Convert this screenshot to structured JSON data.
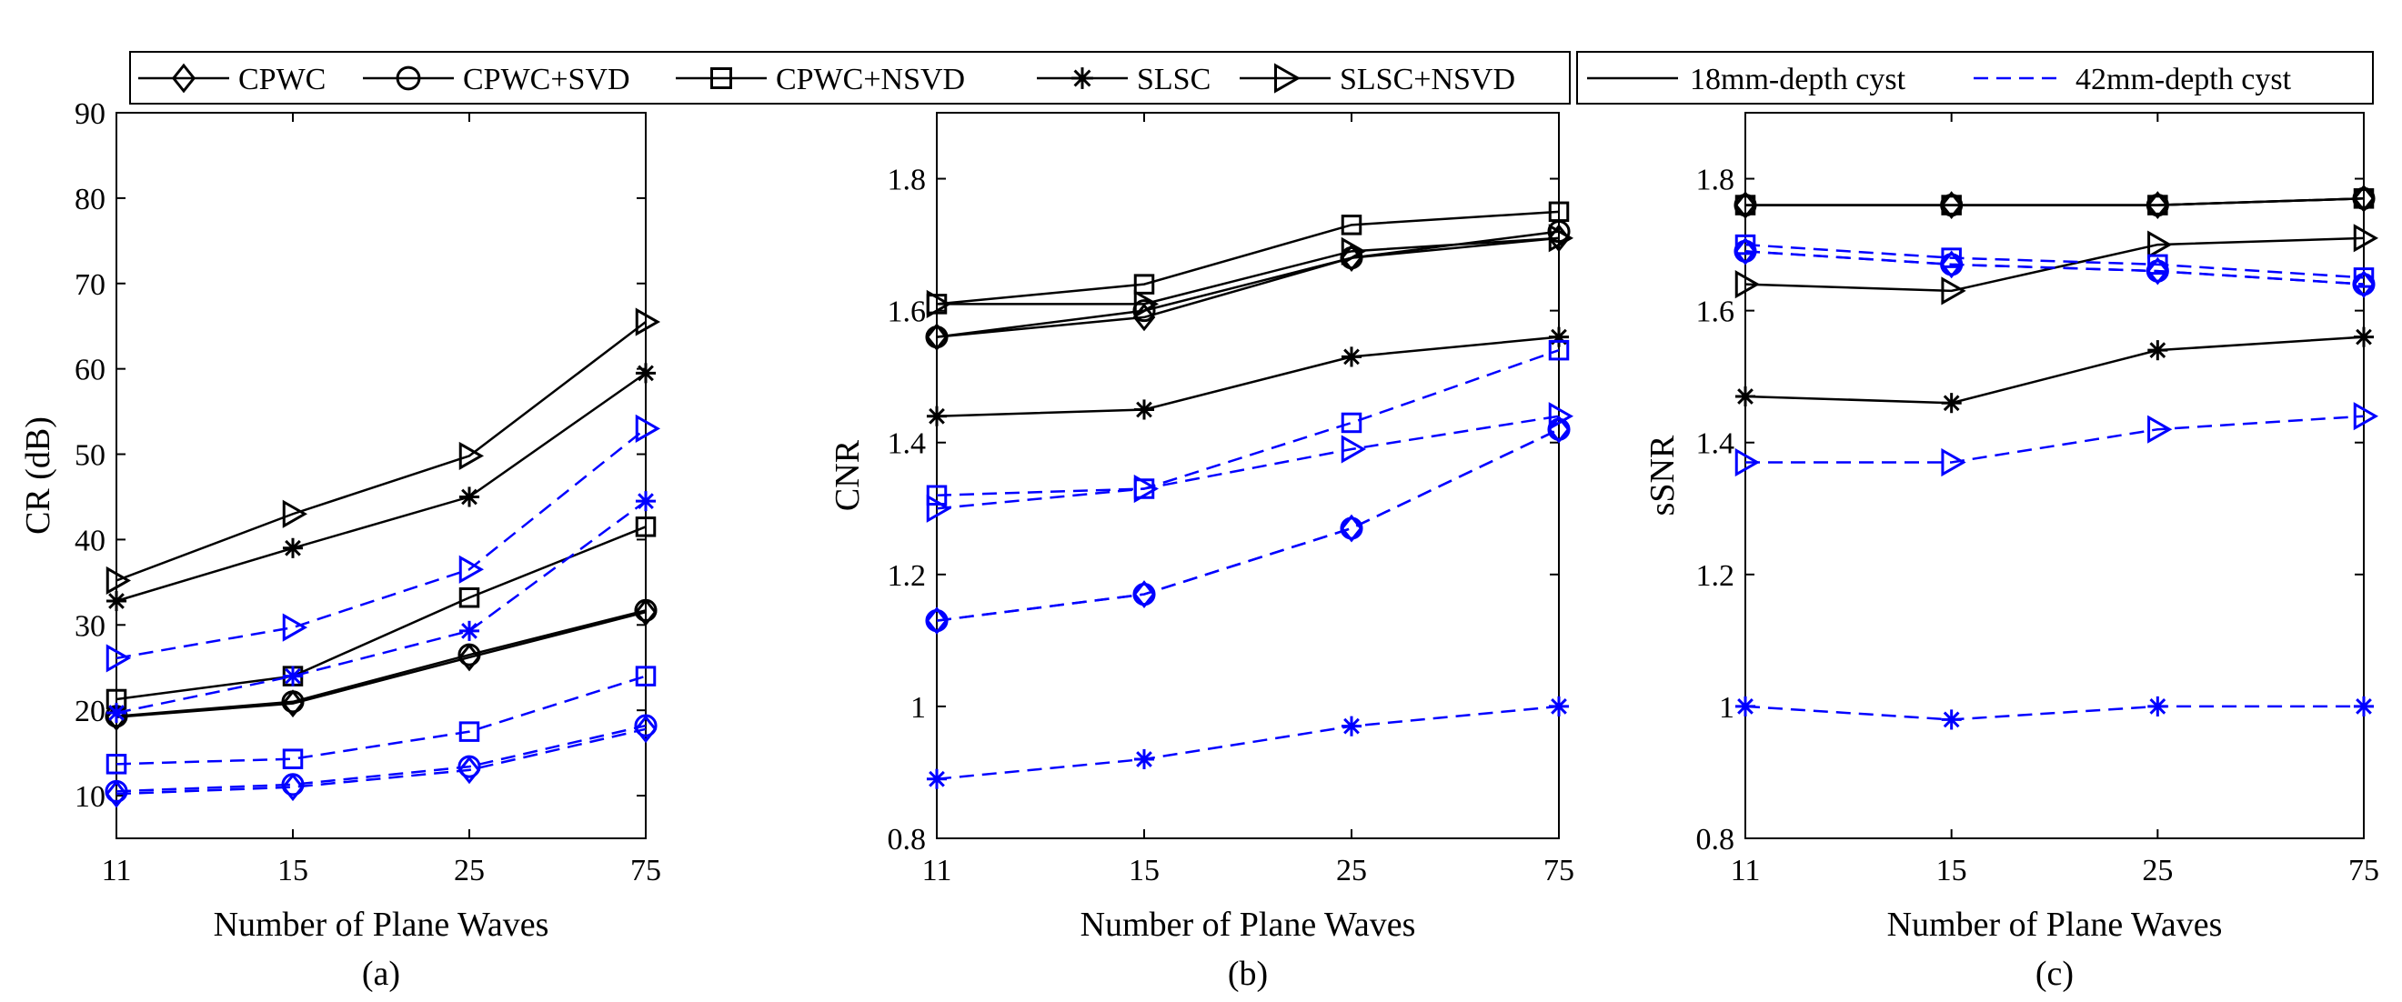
{
  "figure": {
    "legend_methods": [
      "CPWC",
      "CPWC+SVD",
      "CPWC+NSVD",
      "SLSC",
      "SLSC+NSVD"
    ],
    "legend_depths": [
      "18mm-depth cyst",
      "42mm-depth cyst"
    ]
  },
  "chart_data": [
    {
      "type": "line",
      "caption": "(a)",
      "xlabel": "Number of Plane Waves",
      "ylabel": "CR (dB)",
      "categories": [
        "11",
        "15",
        "25",
        "75"
      ],
      "ylim": [
        5,
        90
      ],
      "yticks": [
        "10",
        "20",
        "30",
        "40",
        "50",
        "60",
        "70",
        "80",
        "90"
      ],
      "yticks_values": [
        10,
        20,
        30,
        40,
        50,
        60,
        70,
        80,
        90
      ],
      "series": [
        {
          "name": "CPWC",
          "depth": "18mm-depth cyst",
          "marker": "diamond",
          "color": "#000000",
          "dash": "solid",
          "values": [
            19.2,
            20.8,
            26.2,
            31.5
          ]
        },
        {
          "name": "CPWC+SVD",
          "depth": "18mm-depth cyst",
          "marker": "circle",
          "color": "#000000",
          "dash": "solid",
          "values": [
            19.3,
            21.0,
            26.5,
            31.7
          ]
        },
        {
          "name": "CPWC+NSVD",
          "depth": "18mm-depth cyst",
          "marker": "square",
          "color": "#000000",
          "dash": "solid",
          "values": [
            21.3,
            24.0,
            33.2,
            41.5
          ]
        },
        {
          "name": "SLSC",
          "depth": "18mm-depth cyst",
          "marker": "asterisk",
          "color": "#000000",
          "dash": "solid",
          "values": [
            32.8,
            39.0,
            45.0,
            59.5
          ]
        },
        {
          "name": "SLSC+NSVD",
          "depth": "18mm-depth cyst",
          "marker": "triangle-right",
          "color": "#000000",
          "dash": "solid",
          "values": [
            35.2,
            43.0,
            49.8,
            65.5
          ]
        },
        {
          "name": "CPWC",
          "depth": "42mm-depth cyst",
          "marker": "diamond",
          "color": "#0000ff",
          "dash": "dashed",
          "values": [
            10.2,
            11.0,
            13.0,
            17.8
          ]
        },
        {
          "name": "CPWC+SVD",
          "depth": "42mm-depth cyst",
          "marker": "circle",
          "color": "#0000ff",
          "dash": "dashed",
          "values": [
            10.5,
            11.3,
            13.4,
            18.2
          ]
        },
        {
          "name": "CPWC+NSVD",
          "depth": "42mm-depth cyst",
          "marker": "square",
          "color": "#0000ff",
          "dash": "dashed",
          "values": [
            13.7,
            14.3,
            17.5,
            24.0
          ]
        },
        {
          "name": "SLSC",
          "depth": "42mm-depth cyst",
          "marker": "asterisk",
          "color": "#0000ff",
          "dash": "dashed",
          "values": [
            19.7,
            24.0,
            29.3,
            44.5
          ]
        },
        {
          "name": "SLSC+NSVD",
          "depth": "42mm-depth cyst",
          "marker": "triangle-right",
          "color": "#0000ff",
          "dash": "dashed",
          "values": [
            26.1,
            29.7,
            36.5,
            53.0
          ]
        }
      ]
    },
    {
      "type": "line",
      "caption": "(b)",
      "xlabel": "Number of Plane Waves",
      "ylabel": "CNR",
      "categories": [
        "11",
        "15",
        "25",
        "75"
      ],
      "ylim": [
        0.8,
        1.9
      ],
      "yticks": [
        "0.8",
        "1",
        "1.2",
        "1.4",
        "1.6",
        "1.8"
      ],
      "yticks_values": [
        0.8,
        1.0,
        1.2,
        1.4,
        1.6,
        1.8
      ],
      "series": [
        {
          "name": "CPWC",
          "depth": "18mm-depth cyst",
          "marker": "diamond",
          "color": "#000000",
          "dash": "solid",
          "values": [
            1.56,
            1.59,
            1.68,
            1.71
          ]
        },
        {
          "name": "CPWC+SVD",
          "depth": "18mm-depth cyst",
          "marker": "circle",
          "color": "#000000",
          "dash": "solid",
          "values": [
            1.56,
            1.6,
            1.68,
            1.72
          ]
        },
        {
          "name": "CPWC+NSVD",
          "depth": "18mm-depth cyst",
          "marker": "square",
          "color": "#000000",
          "dash": "solid",
          "values": [
            1.61,
            1.64,
            1.73,
            1.75
          ]
        },
        {
          "name": "SLSC",
          "depth": "18mm-depth cyst",
          "marker": "asterisk",
          "color": "#000000",
          "dash": "solid",
          "values": [
            1.44,
            1.45,
            1.53,
            1.56
          ]
        },
        {
          "name": "SLSC+NSVD",
          "depth": "18mm-depth cyst",
          "marker": "triangle-right",
          "color": "#000000",
          "dash": "solid",
          "values": [
            1.61,
            1.61,
            1.69,
            1.71
          ]
        },
        {
          "name": "CPWC",
          "depth": "42mm-depth cyst",
          "marker": "diamond",
          "color": "#0000ff",
          "dash": "dashed",
          "values": [
            1.13,
            1.17,
            1.27,
            1.42
          ]
        },
        {
          "name": "CPWC+SVD",
          "depth": "42mm-depth cyst",
          "marker": "circle",
          "color": "#0000ff",
          "dash": "dashed",
          "values": [
            1.13,
            1.17,
            1.27,
            1.42
          ]
        },
        {
          "name": "CPWC+NSVD",
          "depth": "42mm-depth cyst",
          "marker": "square",
          "color": "#0000ff",
          "dash": "dashed",
          "values": [
            1.32,
            1.33,
            1.43,
            1.54
          ]
        },
        {
          "name": "SLSC",
          "depth": "42mm-depth cyst",
          "marker": "asterisk",
          "color": "#0000ff",
          "dash": "dashed",
          "values": [
            0.89,
            0.92,
            0.97,
            1.0
          ]
        },
        {
          "name": "SLSC+NSVD",
          "depth": "42mm-depth cyst",
          "marker": "triangle-right",
          "color": "#0000ff",
          "dash": "dashed",
          "values": [
            1.3,
            1.33,
            1.39,
            1.44
          ]
        }
      ]
    },
    {
      "type": "line",
      "caption": "(c)",
      "xlabel": "Number of Plane Waves",
      "ylabel": "sSNR",
      "categories": [
        "11",
        "15",
        "25",
        "75"
      ],
      "ylim": [
        0.8,
        1.9
      ],
      "yticks": [
        "0.8",
        "1",
        "1.2",
        "1.4",
        "1.6",
        "1.8"
      ],
      "yticks_values": [
        0.8,
        1.0,
        1.2,
        1.4,
        1.6,
        1.8
      ],
      "series": [
        {
          "name": "CPWC",
          "depth": "18mm-depth cyst",
          "marker": "diamond",
          "color": "#000000",
          "dash": "solid",
          "values": [
            1.76,
            1.76,
            1.76,
            1.77
          ]
        },
        {
          "name": "CPWC+SVD",
          "depth": "18mm-depth cyst",
          "marker": "circle",
          "color": "#000000",
          "dash": "solid",
          "values": [
            1.76,
            1.76,
            1.76,
            1.77
          ]
        },
        {
          "name": "CPWC+NSVD",
          "depth": "18mm-depth cyst",
          "marker": "square",
          "color": "#000000",
          "dash": "solid",
          "values": [
            1.76,
            1.76,
            1.76,
            1.77
          ]
        },
        {
          "name": "SLSC",
          "depth": "18mm-depth cyst",
          "marker": "asterisk",
          "color": "#000000",
          "dash": "solid",
          "values": [
            1.47,
            1.46,
            1.54,
            1.56
          ]
        },
        {
          "name": "SLSC+NSVD",
          "depth": "18mm-depth cyst",
          "marker": "triangle-right",
          "color": "#000000",
          "dash": "solid",
          "values": [
            1.64,
            1.63,
            1.7,
            1.71
          ]
        },
        {
          "name": "CPWC",
          "depth": "42mm-depth cyst",
          "marker": "diamond",
          "color": "#0000ff",
          "dash": "dashed",
          "values": [
            1.69,
            1.67,
            1.66,
            1.64
          ]
        },
        {
          "name": "CPWC+SVD",
          "depth": "42mm-depth cyst",
          "marker": "circle",
          "color": "#0000ff",
          "dash": "dashed",
          "values": [
            1.69,
            1.67,
            1.66,
            1.64
          ]
        },
        {
          "name": "CPWC+NSVD",
          "depth": "42mm-depth cyst",
          "marker": "square",
          "color": "#0000ff",
          "dash": "dashed",
          "values": [
            1.7,
            1.68,
            1.67,
            1.65
          ]
        },
        {
          "name": "SLSC",
          "depth": "42mm-depth cyst",
          "marker": "asterisk",
          "color": "#0000ff",
          "dash": "dashed",
          "values": [
            1.0,
            0.98,
            1.0,
            1.0
          ]
        },
        {
          "name": "SLSC+NSVD",
          "depth": "42mm-depth cyst",
          "marker": "triangle-right",
          "color": "#0000ff",
          "dash": "dashed",
          "values": [
            1.37,
            1.37,
            1.42,
            1.44
          ]
        }
      ]
    }
  ]
}
